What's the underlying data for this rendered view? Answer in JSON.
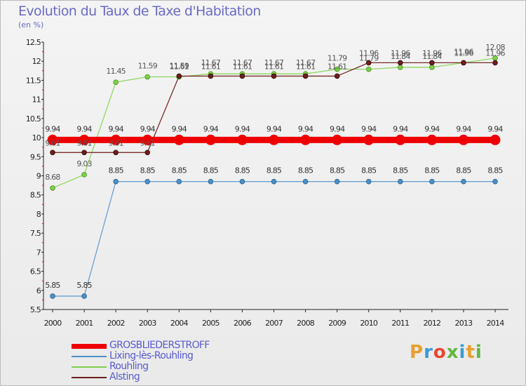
{
  "header": {
    "title": "Evolution du Taux de Taxe d'Habitation",
    "unit": "(en %)"
  },
  "logo": {
    "text": "Proxiti",
    "colors": [
      "#e8a030",
      "#3c9ad8",
      "#e84830",
      "#60b840",
      "#3c9ad8",
      "#e8a030",
      "#60b840"
    ]
  },
  "chart_data": {
    "type": "line",
    "x": [
      2000,
      2001,
      2002,
      2003,
      2004,
      2005,
      2006,
      2007,
      2008,
      2009,
      2010,
      2011,
      2012,
      2013,
      2014
    ],
    "xlabel": "",
    "ylabel": "",
    "ylim": [
      5.5,
      12.5
    ],
    "yticks": [
      "5.5",
      "6",
      "6.5",
      "7",
      "7.5",
      "8",
      "8.5",
      "9",
      "9.5",
      "10",
      "10.5",
      "11",
      "11.5",
      "12",
      "12.5"
    ],
    "grid": false,
    "legend_position": "bottom-left",
    "series": [
      {
        "name": "GROSBLIEDERSTROFF",
        "color": "#ee0000",
        "values": [
          9.94,
          9.94,
          9.94,
          9.94,
          9.94,
          9.94,
          9.94,
          9.94,
          9.94,
          9.94,
          9.94,
          9.94,
          9.94,
          9.94,
          9.94
        ],
        "labels": [
          "9.94",
          "9.94",
          "9.94",
          "9.94",
          "9.94",
          "9.94",
          "9.94",
          "9.94",
          "9.94",
          "9.94",
          "9.94",
          "9.94",
          "9.94",
          "9.94",
          "9.94"
        ]
      },
      {
        "name": "Lixing-lès-Rouhling",
        "color": "#4a90c8",
        "values": [
          5.85,
          5.85,
          8.85,
          8.85,
          8.85,
          8.85,
          8.85,
          8.85,
          8.85,
          8.85,
          8.85,
          8.85,
          8.85,
          8.85,
          8.85
        ],
        "labels": [
          "5.85",
          "5.85",
          "8.85",
          "8.85",
          "8.85",
          "8.85",
          "8.85",
          "8.85",
          "8.85",
          "8.85",
          "8.85",
          "8.85",
          "8.85",
          "8.85",
          "8.85"
        ]
      },
      {
        "name": "Rouhling",
        "color": "#7ed04a",
        "values": [
          8.68,
          9.03,
          11.45,
          11.59,
          11.59,
          11.67,
          11.67,
          11.67,
          11.67,
          11.79,
          11.79,
          11.84,
          11.84,
          11.96,
          12.08
        ],
        "labels": [
          "8.68",
          "9.03",
          "11.45",
          "11.59",
          "11.59",
          "11.67",
          "11.67",
          "11.67",
          "11.67",
          "11.79",
          "11.79",
          "11.84",
          "11.84",
          "11.96",
          "12.08"
        ]
      },
      {
        "name": "Alsting",
        "color": "#6b1e1e",
        "values": [
          9.61,
          9.61,
          9.61,
          9.61,
          11.61,
          11.61,
          11.61,
          11.61,
          11.61,
          11.61,
          11.96,
          11.96,
          11.96,
          11.96,
          11.96
        ],
        "labels": [
          "9.61",
          "9.61",
          "9.61",
          "9.61",
          "11.61",
          "11.61",
          "11.61",
          "11.61",
          "11.61",
          "11.61",
          "11.96",
          "11.96",
          "11.96",
          "11.96",
          "11.96"
        ]
      }
    ]
  }
}
